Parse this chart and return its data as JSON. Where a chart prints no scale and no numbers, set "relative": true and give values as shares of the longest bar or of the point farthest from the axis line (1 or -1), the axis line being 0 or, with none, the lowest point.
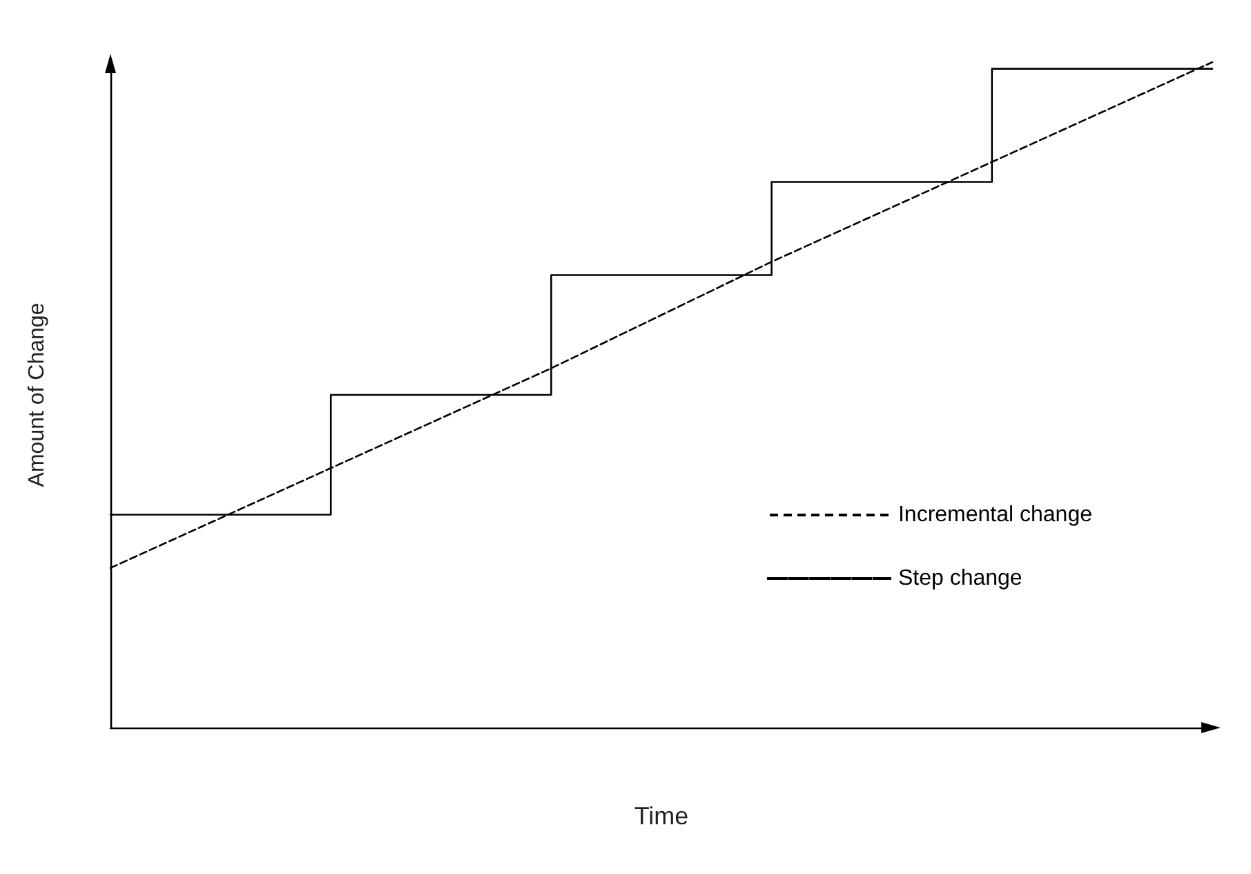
{
  "chart_data": {
    "type": "line",
    "xlabel": "Time",
    "ylabel": "Amount of Change",
    "relative": true,
    "categories": [
      null,
      null,
      null,
      null,
      null,
      null
    ],
    "series": [
      {
        "name": "Incremental change",
        "type": "line",
        "line_style": "dashed",
        "color": "#000000",
        "values": [
          0.24,
          0.39,
          0.54,
          0.7,
          0.85,
          1.0
        ]
      },
      {
        "name": "Step change",
        "type": "step",
        "line_style": "solid",
        "color": "#000000",
        "values": [
          0.32,
          0.5,
          0.68,
          0.82,
          0.99,
          0.99
        ]
      }
    ],
    "legend": "right",
    "marker": "none",
    "grid": false
  }
}
